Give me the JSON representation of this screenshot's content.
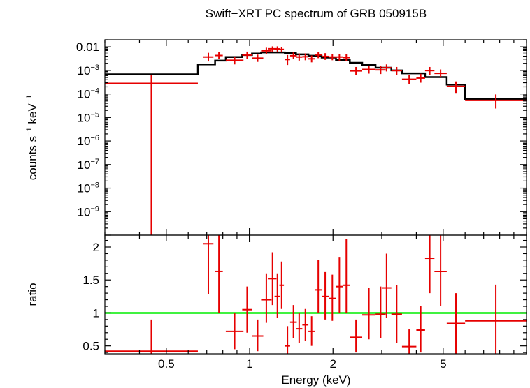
{
  "chart_data": [
    {
      "type": "line",
      "title": "Swift−XRT PC spectrum of GRB 050915B",
      "xlabel": "Energy (keV)",
      "ylabel": {
        "base": "counts s",
        "exp1": "−1",
        "mid": " keV",
        "exp2": "−1"
      },
      "xscale": "log",
      "yscale": "log",
      "xlim": [
        0.3,
        10.0
      ],
      "ylim": [
        1e-10,
        0.02
      ],
      "ytick_labels": [
        {
          "value": 0.01,
          "mantissa": "0.01",
          "exp": ""
        },
        {
          "value": 0.001,
          "mantissa": "10",
          "exp": "−3"
        },
        {
          "value": 0.0001,
          "mantissa": "10",
          "exp": "−4"
        },
        {
          "value": 1e-05,
          "mantissa": "10",
          "exp": "−5"
        },
        {
          "value": 1e-06,
          "mantissa": "10",
          "exp": "−6"
        },
        {
          "value": 1e-07,
          "mantissa": "10",
          "exp": "−7"
        },
        {
          "value": 1e-08,
          "mantissa": "10",
          "exp": "−8"
        },
        {
          "value": 1e-09,
          "mantissa": "10",
          "exp": "−9"
        }
      ],
      "series": [
        {
          "kind": "data",
          "color": "#e60000",
          "points": [
            {
              "x0": 0.3,
              "x1": 0.65,
              "y": 0.00028,
              "ylo": 1e-10,
              "yhi": 0.00065
            },
            {
              "x0": 0.68,
              "x1": 0.74,
              "y": 0.0037,
              "ylo": 0.0024,
              "yhi": 0.0056
            },
            {
              "x0": 0.75,
              "x1": 0.8,
              "y": 0.0043,
              "ylo": 0.003,
              "yhi": 0.0062
            },
            {
              "x0": 0.82,
              "x1": 0.95,
              "y": 0.0027,
              "ylo": 0.0018,
              "yhi": 0.0039
            },
            {
              "x0": 0.94,
              "x1": 1.02,
              "y": 0.0045,
              "ylo": 0.0031,
              "yhi": 0.0063
            },
            {
              "x0": 1.02,
              "x1": 1.12,
              "y": 0.0033,
              "ylo": 0.0023,
              "yhi": 0.0047
            },
            {
              "x0": 1.1,
              "x1": 1.2,
              "y": 0.0068,
              "ylo": 0.0049,
              "yhi": 0.0092
            },
            {
              "x0": 1.17,
              "x1": 1.25,
              "y": 0.0083,
              "ylo": 0.006,
              "yhi": 0.0105
            },
            {
              "x0": 1.23,
              "x1": 1.29,
              "y": 0.0082,
              "ylo": 0.0061,
              "yhi": 0.0105
            },
            {
              "x0": 1.28,
              "x1": 1.33,
              "y": 0.0078,
              "ylo": 0.0058,
              "yhi": 0.0098
            },
            {
              "x0": 1.34,
              "x1": 1.4,
              "y": 0.0029,
              "ylo": 0.0017,
              "yhi": 0.0045
            },
            {
              "x0": 1.4,
              "x1": 1.48,
              "y": 0.0042,
              "ylo": 0.003,
              "yhi": 0.0058
            },
            {
              "x0": 1.47,
              "x1": 1.55,
              "y": 0.0037,
              "ylo": 0.0026,
              "yhi": 0.0052
            },
            {
              "x0": 1.55,
              "x1": 1.63,
              "y": 0.0038,
              "ylo": 0.0027,
              "yhi": 0.0053
            },
            {
              "x0": 1.63,
              "x1": 1.72,
              "y": 0.0031,
              "ylo": 0.0022,
              "yhi": 0.0043
            },
            {
              "x0": 1.72,
              "x1": 1.82,
              "y": 0.0046,
              "ylo": 0.0033,
              "yhi": 0.0062
            },
            {
              "x0": 1.82,
              "x1": 1.93,
              "y": 0.0039,
              "ylo": 0.0028,
              "yhi": 0.0054
            },
            {
              "x0": 1.93,
              "x1": 2.05,
              "y": 0.0037,
              "ylo": 0.0027,
              "yhi": 0.0051
            },
            {
              "x0": 2.05,
              "x1": 2.17,
              "y": 0.0037,
              "ylo": 0.0026,
              "yhi": 0.0051
            },
            {
              "x0": 2.17,
              "x1": 2.3,
              "y": 0.0035,
              "ylo": 0.0025,
              "yhi": 0.0049
            },
            {
              "x0": 2.3,
              "x1": 2.55,
              "y": 0.00095,
              "ylo": 0.00062,
              "yhi": 0.0014
            },
            {
              "x0": 2.55,
              "x1": 2.85,
              "y": 0.0011,
              "ylo": 0.00073,
              "yhi": 0.0016
            },
            {
              "x0": 2.85,
              "x1": 3.1,
              "y": 0.00105,
              "ylo": 0.0007,
              "yhi": 0.0015
            },
            {
              "x0": 3.0,
              "x1": 3.25,
              "y": 0.0013,
              "ylo": 0.0009,
              "yhi": 0.0018
            },
            {
              "x0": 3.25,
              "x1": 3.55,
              "y": 0.00098,
              "ylo": 0.00065,
              "yhi": 0.0014
            },
            {
              "x0": 3.55,
              "x1": 4.0,
              "y": 0.00042,
              "ylo": 0.00026,
              "yhi": 0.00065
            },
            {
              "x0": 4.0,
              "x1": 4.3,
              "y": 0.00047,
              "ylo": 0.0003,
              "yhi": 0.00072
            },
            {
              "x0": 4.3,
              "x1": 4.65,
              "y": 0.00098,
              "ylo": 0.00065,
              "yhi": 0.0014
            },
            {
              "x0": 4.65,
              "x1": 5.15,
              "y": 0.00075,
              "ylo": 0.0005,
              "yhi": 0.0011
            },
            {
              "x0": 5.15,
              "x1": 6.0,
              "y": 0.00021,
              "ylo": 0.00011,
              "yhi": 0.00034
            },
            {
              "x0": 6.0,
              "x1": 10.0,
              "y": 5.3e-05,
              "ylo": 2.4e-05,
              "yhi": 9.5e-05
            }
          ]
        },
        {
          "kind": "model",
          "color": "#000000",
          "steps": [
            {
              "x0": 0.3,
              "x1": 0.65,
              "y": 0.00068
            },
            {
              "x0": 0.65,
              "x1": 0.75,
              "y": 0.0018
            },
            {
              "x0": 0.75,
              "x1": 0.82,
              "y": 0.0026
            },
            {
              "x0": 0.82,
              "x1": 0.94,
              "y": 0.0037
            },
            {
              "x0": 0.94,
              "x1": 1.02,
              "y": 0.0045
            },
            {
              "x0": 1.02,
              "x1": 1.1,
              "y": 0.0052
            },
            {
              "x0": 1.1,
              "x1": 1.34,
              "y": 0.0058
            },
            {
              "x0": 1.34,
              "x1": 1.47,
              "y": 0.0055
            },
            {
              "x0": 1.47,
              "x1": 1.63,
              "y": 0.0048
            },
            {
              "x0": 1.63,
              "x1": 1.82,
              "y": 0.0042
            },
            {
              "x0": 1.82,
              "x1": 2.05,
              "y": 0.0035
            },
            {
              "x0": 2.05,
              "x1": 2.3,
              "y": 0.0027
            },
            {
              "x0": 2.3,
              "x1": 2.55,
              "y": 0.0021
            },
            {
              "x0": 2.55,
              "x1": 2.85,
              "y": 0.0017
            },
            {
              "x0": 2.85,
              "x1": 3.25,
              "y": 0.0013
            },
            {
              "x0": 3.25,
              "x1": 3.55,
              "y": 0.001
            },
            {
              "x0": 3.55,
              "x1": 4.3,
              "y": 0.00075
            },
            {
              "x0": 4.3,
              "x1": 5.15,
              "y": 0.00052
            },
            {
              "x0": 5.15,
              "x1": 6.0,
              "y": 0.00025
            },
            {
              "x0": 6.0,
              "x1": 10.0,
              "y": 6e-05
            }
          ]
        }
      ]
    },
    {
      "type": "line",
      "xlabel": "Energy (keV)",
      "ylabel": "ratio",
      "xscale": "log",
      "xlim": [
        0.3,
        10.0
      ],
      "ylim": [
        0.38,
        2.18
      ],
      "yticks": [
        0.5,
        1,
        1.5,
        2
      ],
      "ytick_labels": [
        "0.5",
        "1",
        "1.5",
        "2"
      ],
      "xticks": [
        0.5,
        1,
        2,
        5
      ],
      "xtick_labels": [
        "0.5",
        "1",
        "2",
        "5"
      ],
      "reference_line": {
        "y": 1,
        "color": "#00ee00"
      },
      "series": [
        {
          "kind": "data",
          "color": "#e60000",
          "points": [
            {
              "x0": 0.3,
              "x1": 0.65,
              "y": 0.42,
              "ylo": 0.38,
              "yhi": 0.9
            },
            {
              "x0": 0.68,
              "x1": 0.74,
              "y": 2.05,
              "ylo": 1.28,
              "yhi": 2.18
            },
            {
              "x0": 0.75,
              "x1": 0.8,
              "y": 1.63,
              "ylo": 1.0,
              "yhi": 2.18
            },
            {
              "x0": 0.82,
              "x1": 0.95,
              "y": 0.72,
              "ylo": 0.45,
              "yhi": 1.0
            },
            {
              "x0": 0.94,
              "x1": 1.02,
              "y": 1.05,
              "ylo": 0.7,
              "yhi": 1.4
            },
            {
              "x0": 1.02,
              "x1": 1.12,
              "y": 0.65,
              "ylo": 0.42,
              "yhi": 0.9
            },
            {
              "x0": 1.1,
              "x1": 1.2,
              "y": 1.2,
              "ylo": 0.85,
              "yhi": 1.6
            },
            {
              "x0": 1.17,
              "x1": 1.25,
              "y": 1.52,
              "ylo": 1.12,
              "yhi": 1.92
            },
            {
              "x0": 1.23,
              "x1": 1.29,
              "y": 1.25,
              "ylo": 0.92,
              "yhi": 1.6
            },
            {
              "x0": 1.28,
              "x1": 1.33,
              "y": 1.42,
              "ylo": 1.06,
              "yhi": 1.78
            },
            {
              "x0": 1.34,
              "x1": 1.4,
              "y": 0.5,
              "ylo": 0.38,
              "yhi": 0.8
            },
            {
              "x0": 1.4,
              "x1": 1.48,
              "y": 0.86,
              "ylo": 0.62,
              "yhi": 1.12
            },
            {
              "x0": 1.47,
              "x1": 1.55,
              "y": 0.76,
              "ylo": 0.54,
              "yhi": 1.0
            },
            {
              "x0": 1.55,
              "x1": 1.63,
              "y": 0.82,
              "ylo": 0.58,
              "yhi": 1.06
            },
            {
              "x0": 1.63,
              "x1": 1.72,
              "y": 0.72,
              "ylo": 0.5,
              "yhi": 0.95
            },
            {
              "x0": 1.72,
              "x1": 1.82,
              "y": 1.35,
              "ylo": 1.0,
              "yhi": 1.8
            },
            {
              "x0": 1.82,
              "x1": 1.93,
              "y": 1.25,
              "ylo": 0.9,
              "yhi": 1.62
            },
            {
              "x0": 1.93,
              "x1": 2.05,
              "y": 1.22,
              "ylo": 0.88,
              "yhi": 1.58
            },
            {
              "x0": 2.05,
              "x1": 2.17,
              "y": 1.4,
              "ylo": 1.0,
              "yhi": 1.85
            },
            {
              "x0": 2.17,
              "x1": 2.3,
              "y": 1.42,
              "ylo": 1.0,
              "yhi": 2.12
            },
            {
              "x0": 2.3,
              "x1": 2.55,
              "y": 0.63,
              "ylo": 0.4,
              "yhi": 0.9
            },
            {
              "x0": 2.55,
              "x1": 2.85,
              "y": 0.97,
              "ylo": 0.6,
              "yhi": 1.38
            },
            {
              "x0": 2.85,
              "x1": 3.1,
              "y": 0.98,
              "ylo": 0.62,
              "yhi": 1.4
            },
            {
              "x0": 3.0,
              "x1": 3.25,
              "y": 1.38,
              "ylo": 0.92,
              "yhi": 1.9
            },
            {
              "x0": 3.25,
              "x1": 3.55,
              "y": 0.98,
              "ylo": 0.55,
              "yhi": 1.42
            },
            {
              "x0": 3.55,
              "x1": 4.0,
              "y": 0.49,
              "ylo": 0.38,
              "yhi": 0.75
            },
            {
              "x0": 4.0,
              "x1": 4.3,
              "y": 0.74,
              "ylo": 0.4,
              "yhi": 1.1
            },
            {
              "x0": 4.3,
              "x1": 4.65,
              "y": 1.83,
              "ylo": 1.3,
              "yhi": 2.18
            },
            {
              "x0": 4.65,
              "x1": 5.15,
              "y": 1.63,
              "ylo": 1.1,
              "yhi": 2.18
            },
            {
              "x0": 5.15,
              "x1": 6.0,
              "y": 0.84,
              "ylo": 0.38,
              "yhi": 1.3
            },
            {
              "x0": 6.0,
              "x1": 10.0,
              "y": 0.88,
              "ylo": 0.38,
              "yhi": 1.43
            }
          ]
        }
      ]
    }
  ]
}
